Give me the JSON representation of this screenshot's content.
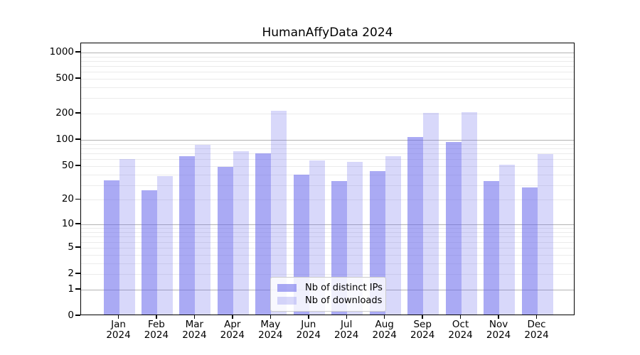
{
  "chart_data": {
    "type": "bar",
    "title": "HumanAffyData 2024",
    "categories": [
      "Jan",
      "Feb",
      "Mar",
      "Apr",
      "May",
      "Jun",
      "Jul",
      "Aug",
      "Sep",
      "Oct",
      "Nov",
      "Dec"
    ],
    "x_tick_second_line": "2024",
    "series": [
      {
        "name": "Nb of distinct IPs",
        "color": "rgba(100,100,235,0.55)",
        "flat_color": "#aaaaf2",
        "values": [
          33,
          25,
          62,
          47,
          67,
          38,
          32,
          42,
          105,
          92,
          32,
          27
        ]
      },
      {
        "name": "Nb of downloads",
        "color": "rgba(100,100,235,0.25)",
        "flat_color": "#d8d8f9",
        "values": [
          58,
          37,
          84,
          71,
          210,
          56,
          54,
          63,
          197,
          200,
          50,
          66
        ]
      }
    ],
    "yscale": "log1p",
    "ylim": [
      0,
      1270
    ],
    "yticks": [
      0,
      1,
      2,
      5,
      10,
      20,
      50,
      100,
      200,
      500,
      1000
    ],
    "grid_major": [
      1,
      10,
      100,
      1000
    ],
    "grid_minor": [
      2,
      3,
      4,
      5,
      6,
      7,
      8,
      9,
      20,
      30,
      40,
      50,
      60,
      70,
      80,
      90,
      200,
      300,
      400,
      500,
      600,
      700,
      800,
      900
    ],
    "legend_position": "lower center",
    "grid": "on"
  },
  "colors": {
    "background": "#ffffff",
    "axis": "#000000",
    "text": "#000000",
    "grid_major": "#b3b3b3",
    "grid_minor": "#ebebeb",
    "legend_border": "#cccccc"
  }
}
